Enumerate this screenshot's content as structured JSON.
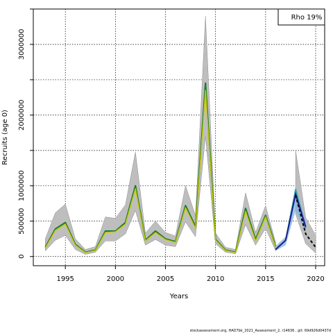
{
  "chart_data": {
    "type": "line",
    "title": "",
    "xlabel": "Years",
    "ylabel": "Recruits (age 0)",
    "xlim": [
      1991.8,
      2020.9
    ],
    "ylim": [
      -130000,
      3500000
    ],
    "xticks": [
      1995,
      2000,
      2005,
      2010,
      2015,
      2020
    ],
    "xtick_labels": [
      "1995",
      "2000",
      "2005",
      "2010",
      "2015",
      "2020"
    ],
    "yticks": [
      0,
      500000,
      1000000,
      1500000,
      2000000,
      2500000,
      3000000,
      3500000
    ],
    "ytick_labels": [
      "0",
      "500000",
      "1000000",
      "",
      "2000000",
      "",
      "3000000",
      ""
    ],
    "grid": true,
    "legend": {
      "label": "Rho 19%",
      "placement": "top-right"
    },
    "colors": {
      "band": "#bebebe",
      "series_a": "#1b7a2e",
      "series_b": "#c8c800",
      "retro_band": "#7fb2e0",
      "retro_teal": "#2aa3a3",
      "retro_navy": "#1c1c8c",
      "projection": "#000000"
    },
    "years": [
      1993,
      1994,
      1995,
      1996,
      1997,
      1998,
      1999,
      2000,
      2001,
      2002,
      2003,
      2004,
      2005,
      2006,
      2007,
      2008,
      2009,
      2010,
      2011,
      2012,
      2013,
      2014,
      2015,
      2016
    ],
    "band_upper": [
      250000,
      620000,
      740000,
      250000,
      100000,
      140000,
      560000,
      540000,
      730000,
      1480000,
      330000,
      500000,
      340000,
      290000,
      1000000,
      580000,
      3400000,
      330000,
      130000,
      100000,
      900000,
      340000,
      720000,
      200000
    ],
    "band_lower": [
      80000,
      230000,
      300000,
      100000,
      30000,
      60000,
      220000,
      220000,
      320000,
      650000,
      160000,
      240000,
      160000,
      140000,
      490000,
      280000,
      1700000,
      180000,
      60000,
      40000,
      450000,
      160000,
      400000,
      80000
    ],
    "series": [
      {
        "name": "",
        "values": [
          130000,
          390000,
          480000,
          170000,
          60000,
          90000,
          360000,
          360000,
          480000,
          1000000,
          230000,
          360000,
          250000,
          210000,
          720000,
          420000,
          2450000,
          240000,
          90000,
          60000,
          680000,
          240000,
          580000,
          140000
        ]
      },
      {
        "name": "",
        "values": [
          120000,
          370000,
          460000,
          160000,
          55000,
          85000,
          340000,
          350000,
          460000,
          960000,
          220000,
          340000,
          240000,
          200000,
          690000,
          400000,
          2350000,
          230000,
          85000,
          55000,
          640000,
          220000,
          560000,
          130000
        ]
      }
    ],
    "retro": {
      "years": [
        2016,
        2017,
        2018,
        2019
      ],
      "band_upper": [
        150000,
        280000,
        1000000,
        500000
      ],
      "band_lower": [
        80000,
        160000,
        650000,
        330000
      ],
      "teal_values": [
        100000,
        230000,
        950000,
        400000
      ],
      "navy_values": [
        100000,
        230000,
        880000,
        420000
      ]
    },
    "projection": {
      "years": [
        2018,
        2019,
        2020
      ],
      "band_upper": [
        1500000,
        550000,
        300000
      ],
      "band_lower": [
        600000,
        180000,
        50000
      ],
      "values": [
        870000,
        320000,
        130000
      ]
    }
  },
  "footer": {
    "text": "stockassessment.org, HAD7bk_2021_Assessment_2, r14636 , git: 69d926d0437d"
  }
}
